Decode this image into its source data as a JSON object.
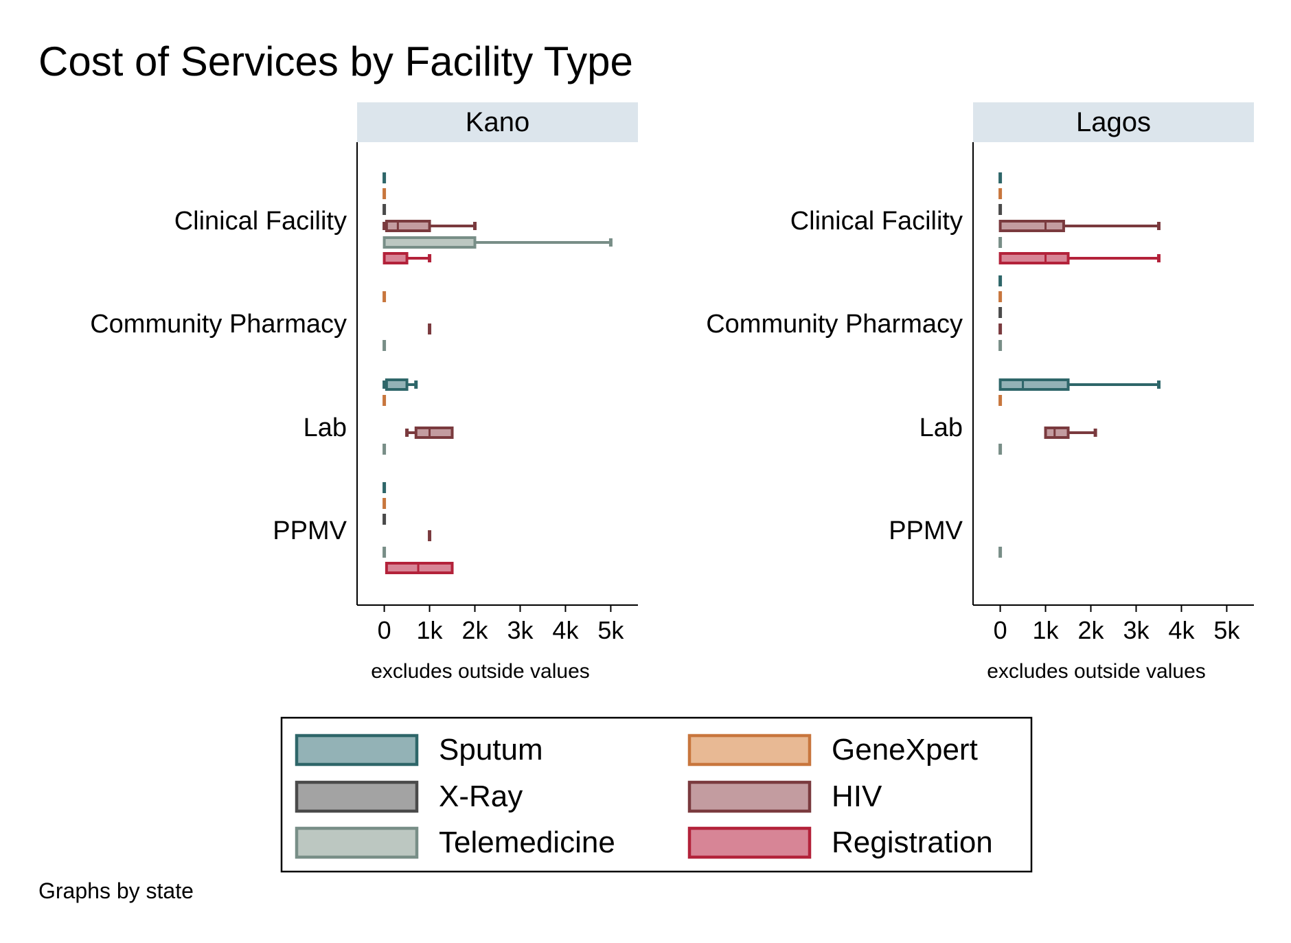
{
  "title": "Cost of Services by Facility Type",
  "note": "Graphs by state",
  "axis_note": "excludes outside values",
  "legend": [
    {
      "name": "Sputum",
      "fill": "#93b2b6",
      "stroke": "#2e6669"
    },
    {
      "name": "GeneXpert",
      "fill": "#e8b994",
      "stroke": "#c8763d"
    },
    {
      "name": "X-Ray",
      "fill": "#a3a3a3",
      "stroke": "#4a4a4a"
    },
    {
      "name": "HIV",
      "fill": "#c39ca0",
      "stroke": "#7a3a3e"
    },
    {
      "name": "Telemedicine",
      "fill": "#bcc7c1",
      "stroke": "#788e87"
    },
    {
      "name": "Registration",
      "fill": "#d78596",
      "stroke": "#b3223a"
    }
  ],
  "chart_data": {
    "type": "box",
    "orientation": "horizontal",
    "xlim": [
      -600,
      5600
    ],
    "xticks": [
      0,
      1000,
      2000,
      3000,
      4000,
      5000
    ],
    "xtick_labels": [
      "0",
      "1k",
      "2k",
      "3k",
      "4k",
      "5k"
    ],
    "xlabel": "excludes outside values",
    "groups": [
      "Clinical Facility",
      "Community Pharmacy",
      "Lab",
      "PPMV"
    ],
    "series_order": [
      "Sputum",
      "GeneXpert",
      "X-Ray",
      "HIV",
      "Telemedicine",
      "Registration"
    ],
    "legend_position": "bottom",
    "panels": [
      {
        "name": "Kano",
        "groups": [
          {
            "group": "Clinical Facility",
            "boxes": [
              {
                "series": "Sputum",
                "min": 0,
                "q1": 0,
                "median": 0,
                "q3": 0,
                "max": 0
              },
              {
                "series": "GeneXpert",
                "min": 0,
                "q1": 0,
                "median": 0,
                "q3": 0,
                "max": 0
              },
              {
                "series": "X-Ray",
                "min": 0,
                "q1": 0,
                "median": 0,
                "q3": 0,
                "max": 0
              },
              {
                "series": "HIV",
                "min": 0,
                "q1": 50,
                "median": 300,
                "q3": 1000,
                "max": 2000
              },
              {
                "series": "Telemedicine",
                "min": 0,
                "q1": 0,
                "median": 0,
                "q3": 2000,
                "max": 5000
              },
              {
                "series": "Registration",
                "min": 0,
                "q1": 0,
                "median": 0,
                "q3": 500,
                "max": 1000
              }
            ]
          },
          {
            "group": "Community Pharmacy",
            "boxes": [
              {
                "series": "Sputum",
                "empty": true
              },
              {
                "series": "GeneXpert",
                "min": 0,
                "q1": 0,
                "median": 0,
                "q3": 0,
                "max": 0
              },
              {
                "series": "X-Ray",
                "empty": true
              },
              {
                "series": "HIV",
                "min": 1000,
                "q1": 1000,
                "median": 1000,
                "q3": 1000,
                "max": 1000
              },
              {
                "series": "Telemedicine",
                "min": 0,
                "q1": 0,
                "median": 0,
                "q3": 0,
                "max": 0
              },
              {
                "series": "Registration",
                "empty": true
              }
            ]
          },
          {
            "group": "Lab",
            "boxes": [
              {
                "series": "Sputum",
                "min": 0,
                "q1": 50,
                "median": 50,
                "q3": 500,
                "max": 700
              },
              {
                "series": "GeneXpert",
                "min": 0,
                "q1": 0,
                "median": 0,
                "q3": 0,
                "max": 0
              },
              {
                "series": "X-Ray",
                "empty": true
              },
              {
                "series": "HIV",
                "min": 500,
                "q1": 700,
                "median": 1000,
                "q3": 1500,
                "max": 1500
              },
              {
                "series": "Telemedicine",
                "min": 0,
                "q1": 0,
                "median": 0,
                "q3": 0,
                "max": 0
              },
              {
                "series": "Registration",
                "empty": true
              }
            ]
          },
          {
            "group": "PPMV",
            "boxes": [
              {
                "series": "Sputum",
                "min": 0,
                "q1": 0,
                "median": 0,
                "q3": 0,
                "max": 0
              },
              {
                "series": "GeneXpert",
                "min": 0,
                "q1": 0,
                "median": 0,
                "q3": 0,
                "max": 0
              },
              {
                "series": "X-Ray",
                "min": 0,
                "q1": 0,
                "median": 0,
                "q3": 0,
                "max": 0
              },
              {
                "series": "HIV",
                "min": 1000,
                "q1": 1000,
                "median": 1000,
                "q3": 1000,
                "max": 1000
              },
              {
                "series": "Telemedicine",
                "min": 0,
                "q1": 0,
                "median": 0,
                "q3": 0,
                "max": 0
              },
              {
                "series": "Registration",
                "min": 50,
                "q1": 50,
                "median": 750,
                "q3": 1500,
                "max": 1500
              }
            ]
          }
        ]
      },
      {
        "name": "Lagos",
        "groups": [
          {
            "group": "Clinical Facility",
            "boxes": [
              {
                "series": "Sputum",
                "min": 0,
                "q1": 0,
                "median": 0,
                "q3": 0,
                "max": 0
              },
              {
                "series": "GeneXpert",
                "min": 0,
                "q1": 0,
                "median": 0,
                "q3": 0,
                "max": 0
              },
              {
                "series": "X-Ray",
                "min": 0,
                "q1": 0,
                "median": 0,
                "q3": 0,
                "max": 0
              },
              {
                "series": "HIV",
                "min": 0,
                "q1": 0,
                "median": 1000,
                "q3": 1400,
                "max": 3500
              },
              {
                "series": "Telemedicine",
                "min": 0,
                "q1": 0,
                "median": 0,
                "q3": 0,
                "max": 0
              },
              {
                "series": "Registration",
                "min": 0,
                "q1": 0,
                "median": 1000,
                "q3": 1500,
                "max": 3500
              }
            ]
          },
          {
            "group": "Community Pharmacy",
            "boxes": [
              {
                "series": "Sputum",
                "min": 0,
                "q1": 0,
                "median": 0,
                "q3": 0,
                "max": 0
              },
              {
                "series": "GeneXpert",
                "min": 0,
                "q1": 0,
                "median": 0,
                "q3": 0,
                "max": 0
              },
              {
                "series": "X-Ray",
                "min": 0,
                "q1": 0,
                "median": 0,
                "q3": 0,
                "max": 0
              },
              {
                "series": "HIV",
                "min": 0,
                "q1": 0,
                "median": 0,
                "q3": 0,
                "max": 0
              },
              {
                "series": "Telemedicine",
                "min": 0,
                "q1": 0,
                "median": 0,
                "q3": 0,
                "max": 0
              },
              {
                "series": "Registration",
                "empty": true
              }
            ]
          },
          {
            "group": "Lab",
            "boxes": [
              {
                "series": "Sputum",
                "min": 0,
                "q1": 0,
                "median": 500,
                "q3": 1500,
                "max": 3500
              },
              {
                "series": "GeneXpert",
                "min": 0,
                "q1": 0,
                "median": 0,
                "q3": 0,
                "max": 0
              },
              {
                "series": "X-Ray",
                "empty": true
              },
              {
                "series": "HIV",
                "min": 1000,
                "q1": 1000,
                "median": 1200,
                "q3": 1500,
                "max": 2100
              },
              {
                "series": "Telemedicine",
                "min": 0,
                "q1": 0,
                "median": 0,
                "q3": 0,
                "max": 0
              },
              {
                "series": "Registration",
                "empty": true
              }
            ]
          },
          {
            "group": "PPMV",
            "boxes": [
              {
                "series": "Sputum",
                "empty": true
              },
              {
                "series": "GeneXpert",
                "empty": true
              },
              {
                "series": "X-Ray",
                "empty": true
              },
              {
                "series": "HIV",
                "empty": true
              },
              {
                "series": "Telemedicine",
                "min": 0,
                "q1": 0,
                "median": 0,
                "q3": 0,
                "max": 0
              },
              {
                "series": "Registration",
                "empty": true
              }
            ]
          }
        ]
      }
    ]
  }
}
